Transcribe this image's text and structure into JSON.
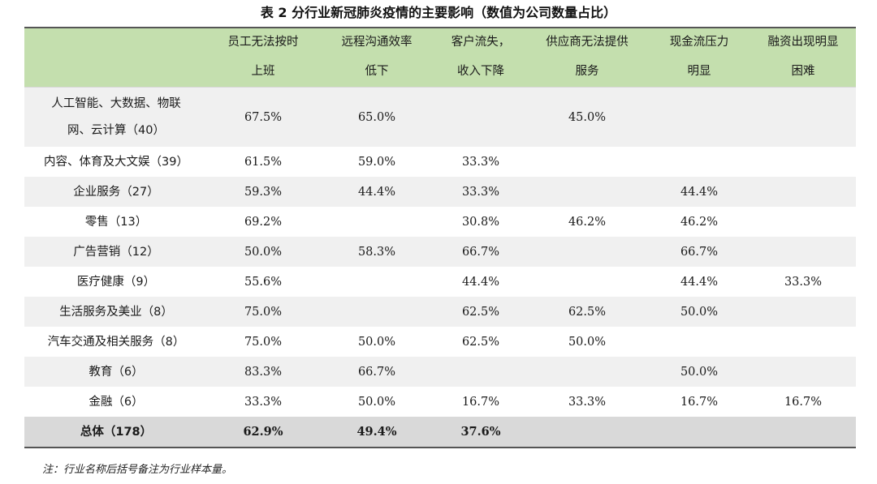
{
  "title": "表 2  分行业新冠肺炎疫情的主要影响（数值为公司数量占比）",
  "table": {
    "headers": [
      [
        "",
        ""
      ],
      [
        "员工无法按时",
        "上班"
      ],
      [
        "远程沟通效率",
        "低下"
      ],
      [
        "客户流失，",
        "收入下降"
      ],
      [
        "供应商无法提供",
        "服务"
      ],
      [
        "现金流压力",
        "明显"
      ],
      [
        "融资出现明显",
        "困难"
      ]
    ],
    "rows": [
      {
        "label": [
          "人工智能、大数据、物联",
          "网、云计算（40）"
        ],
        "cells": [
          "67.5%",
          "65.0%",
          "",
          "45.0%",
          "",
          ""
        ]
      },
      {
        "label": [
          "内容、体育及大文娱（39）"
        ],
        "cells": [
          "61.5%",
          "59.0%",
          "33.3%",
          "",
          "",
          ""
        ]
      },
      {
        "label": [
          "企业服务（27）"
        ],
        "cells": [
          "59.3%",
          "44.4%",
          "33.3%",
          "",
          "44.4%",
          ""
        ]
      },
      {
        "label": [
          "零售（13）"
        ],
        "cells": [
          "69.2%",
          "",
          "30.8%",
          "46.2%",
          "46.2%",
          ""
        ]
      },
      {
        "label": [
          "广告营销（12）"
        ],
        "cells": [
          "50.0%",
          "58.3%",
          "66.7%",
          "",
          "66.7%",
          ""
        ]
      },
      {
        "label": [
          "医疗健康（9）"
        ],
        "cells": [
          "55.6%",
          "",
          "44.4%",
          "",
          "44.4%",
          "33.3%"
        ]
      },
      {
        "label": [
          "生活服务及美业（8）"
        ],
        "cells": [
          "75.0%",
          "",
          "62.5%",
          "62.5%",
          "50.0%",
          ""
        ]
      },
      {
        "label": [
          "汽车交通及相关服务（8）"
        ],
        "cells": [
          "75.0%",
          "50.0%",
          "62.5%",
          "50.0%",
          "",
          ""
        ]
      },
      {
        "label": [
          "教育（6）"
        ],
        "cells": [
          "83.3%",
          "66.7%",
          "",
          "",
          "50.0%",
          ""
        ]
      },
      {
        "label": [
          "金融（6）"
        ],
        "cells": [
          "33.3%",
          "50.0%",
          "16.7%",
          "33.3%",
          "16.7%",
          "16.7%"
        ]
      }
    ],
    "total": {
      "label": "总体（178）",
      "cells": [
        "62.9%",
        "49.4%",
        "37.6%",
        "",
        "",
        ""
      ]
    }
  },
  "note": "注：行业名称后括号备注为行业样本量。",
  "colors": {
    "header_bg": "#c4dfae",
    "shaded_row": "#f0f0f0",
    "total_row": "#d9d9d9"
  }
}
